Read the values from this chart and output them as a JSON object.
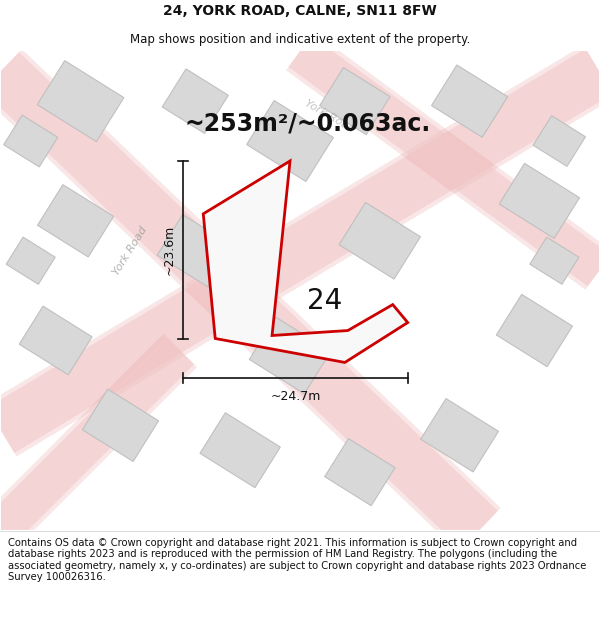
{
  "title": "24, YORK ROAD, CALNE, SN11 8FW",
  "subtitle": "Map shows position and indicative extent of the property.",
  "area_label": "~253m²/~0.063ac.",
  "number_label": "24",
  "width_label": "~24.7m",
  "height_label": "~23.6m",
  "footer": "Contains OS data © Crown copyright and database right 2021. This information is subject to Crown copyright and database rights 2023 and is reproduced with the permission of HM Land Registry. The polygons (including the associated geometry, namely x, y co-ordinates) are subject to Crown copyright and database rights 2023 Ordnance Survey 100026316.",
  "bg_color": "#f8f8f8",
  "road_color": "#f2c8c8",
  "road_outline_color": "#e8a0a0",
  "building_fill": "#d8d8d8",
  "building_edge": "#c0c0c0",
  "highlight_color": "#cc0000",
  "title_fontsize": 10,
  "subtitle_fontsize": 8.5,
  "area_fontsize": 17,
  "number_fontsize": 20,
  "dim_fontsize": 9,
  "footer_fontsize": 7.2,
  "york_road_label": "York Road"
}
